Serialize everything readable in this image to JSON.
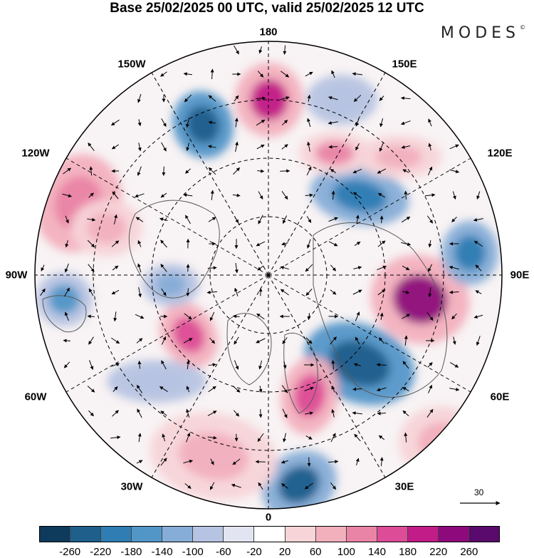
{
  "header": {
    "title": "Base 25/02/2025 00 UTC, valid 25/02/2025 12 UTC",
    "brand": "MODES",
    "brand_mark": "©"
  },
  "map": {
    "projection": "polar stereographic (north)",
    "longitude_labels": {
      "top": "180",
      "top_left": "150W",
      "top_right": "150E",
      "upper_left": "120W",
      "upper_right": "120E",
      "left": "90W",
      "right": "90E",
      "lower_left": "60W",
      "lower_right": "60E",
      "bottom_left": "30W",
      "bottom_right": "30E",
      "bottom": "0"
    },
    "reference_vector_label": "30",
    "colors": {
      "land_outline": "#555555",
      "graticule": "#000000"
    }
  },
  "colorbar": {
    "tick_labels": [
      "-260",
      "-220",
      "-180",
      "-140",
      "-100",
      "-60",
      "-20",
      "20",
      "60",
      "100",
      "140",
      "180",
      "220",
      "260"
    ],
    "colors": [
      "#0e3a5c",
      "#1e5f8c",
      "#2f7db3",
      "#5296c8",
      "#86add7",
      "#b6c3e2",
      "#e2e4f1",
      "#ffffff",
      "#f7d4d8",
      "#f2b0bd",
      "#ea84a7",
      "#dd4c97",
      "#c21c88",
      "#8e0a7c",
      "#5a0a6c"
    ]
  }
}
